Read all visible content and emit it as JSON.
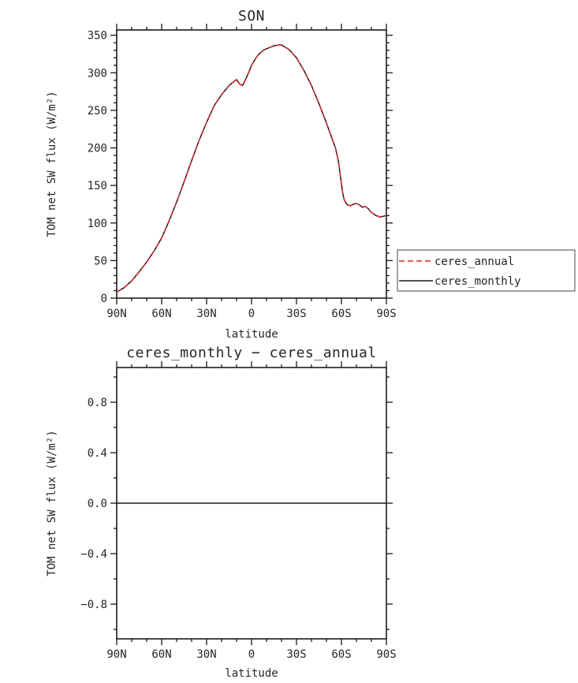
{
  "figure": {
    "background": "#ffffff",
    "text_color": "#262626",
    "axis_color": "#1a1a1a"
  },
  "chart_data": [
    {
      "type": "line",
      "title": "SON",
      "xlabel": "latitude",
      "ylabel": "TOM net SW flux (W/m²)",
      "xlim": [
        90,
        -90
      ],
      "ylim": [
        0,
        357
      ],
      "grid": false,
      "x_ticks": [
        {
          "value": 90,
          "label": "90N"
        },
        {
          "value": 60,
          "label": "60N"
        },
        {
          "value": 30,
          "label": "30N"
        },
        {
          "value": 0,
          "label": "0"
        },
        {
          "value": -30,
          "label": "30S"
        },
        {
          "value": -60,
          "label": "60S"
        },
        {
          "value": -90,
          "label": "90S"
        }
      ],
      "x_minor_step": 10,
      "y_ticks": [
        {
          "value": 0,
          "label": "0"
        },
        {
          "value": 50,
          "label": "50"
        },
        {
          "value": 100,
          "label": "100"
        },
        {
          "value": 150,
          "label": "150"
        },
        {
          "value": 200,
          "label": "200"
        },
        {
          "value": 250,
          "label": "250"
        },
        {
          "value": 300,
          "label": "300"
        },
        {
          "value": 350,
          "label": "350"
        }
      ],
      "y_minor_step": 10,
      "x": [
        90,
        85,
        80,
        75,
        70,
        65,
        60,
        55,
        50,
        45,
        40,
        35,
        30,
        25,
        20,
        15,
        12,
        10,
        8,
        6,
        4,
        2,
        0,
        -3,
        -5,
        -8,
        -10,
        -15,
        -18,
        -20,
        -25,
        -30,
        -35,
        -40,
        -45,
        -50,
        -54,
        -56,
        -58,
        -60,
        -61,
        -62,
        -64,
        -66,
        -68,
        -70,
        -72,
        -74,
        -76,
        -78,
        -80,
        -83,
        -86,
        -88,
        -90
      ],
      "series": [
        {
          "name": "ceres_monthly",
          "color": "#1a1a1a",
          "style": "solid",
          "values": [
            8,
            14,
            23,
            35,
            48,
            63,
            80,
            103,
            128,
            155,
            183,
            210,
            234,
            256,
            271,
            283,
            288,
            291,
            285,
            283,
            291,
            300,
            310,
            320,
            325,
            330,
            332,
            336,
            337,
            337,
            331,
            320,
            303,
            283,
            259,
            233,
            211,
            200,
            182,
            152,
            138,
            130,
            124,
            123,
            125,
            126,
            124,
            121,
            122,
            119,
            114,
            110,
            108,
            109,
            110
          ]
        },
        {
          "name": "ceres_annual",
          "color": "#dd2222",
          "style": "dashed",
          "values": [
            8,
            14,
            23,
            35,
            48,
            63,
            80,
            103,
            128,
            155,
            183,
            210,
            234,
            256,
            271,
            283,
            288,
            291,
            285,
            283,
            291,
            300,
            310,
            320,
            325,
            330,
            332,
            336,
            337,
            337,
            331,
            320,
            303,
            283,
            259,
            233,
            211,
            200,
            182,
            152,
            138,
            130,
            124,
            123,
            125,
            126,
            124,
            121,
            122,
            119,
            114,
            110,
            108,
            109,
            110
          ]
        }
      ],
      "legend": {
        "position": "outside-right",
        "entries": [
          {
            "label": "ceres_annual",
            "color": "#dd2222",
            "style": "dashed"
          },
          {
            "label": "ceres_monthly",
            "color": "#1a1a1a",
            "style": "solid"
          }
        ]
      }
    },
    {
      "type": "line",
      "title": "ceres_monthly − ceres_annual",
      "xlabel": "latitude",
      "ylabel": "TOM net SW flux (W/m²)",
      "xlim": [
        90,
        -90
      ],
      "ylim": [
        -1.075,
        1.075
      ],
      "grid": false,
      "x_ticks": [
        {
          "value": 90,
          "label": "90N"
        },
        {
          "value": 60,
          "label": "60N"
        },
        {
          "value": 30,
          "label": "30N"
        },
        {
          "value": 0,
          "label": "0"
        },
        {
          "value": -30,
          "label": "30S"
        },
        {
          "value": -60,
          "label": "60S"
        },
        {
          "value": -90,
          "label": "90S"
        }
      ],
      "x_minor_step": 10,
      "y_ticks": [
        {
          "value": -0.8,
          "label": "−0.8"
        },
        {
          "value": -0.4,
          "label": "−0.4"
        },
        {
          "value": 0.0,
          "label": "0.0"
        },
        {
          "value": 0.4,
          "label": "0.4"
        },
        {
          "value": 0.8,
          "label": "0.8"
        }
      ],
      "y_minor_step": 0.2,
      "x": [
        90,
        -90
      ],
      "series": [
        {
          "name": "ceres_monthly_minus_ceres_annual",
          "color": "#1a1a1a",
          "style": "solid",
          "values": [
            0,
            0
          ]
        }
      ]
    }
  ]
}
